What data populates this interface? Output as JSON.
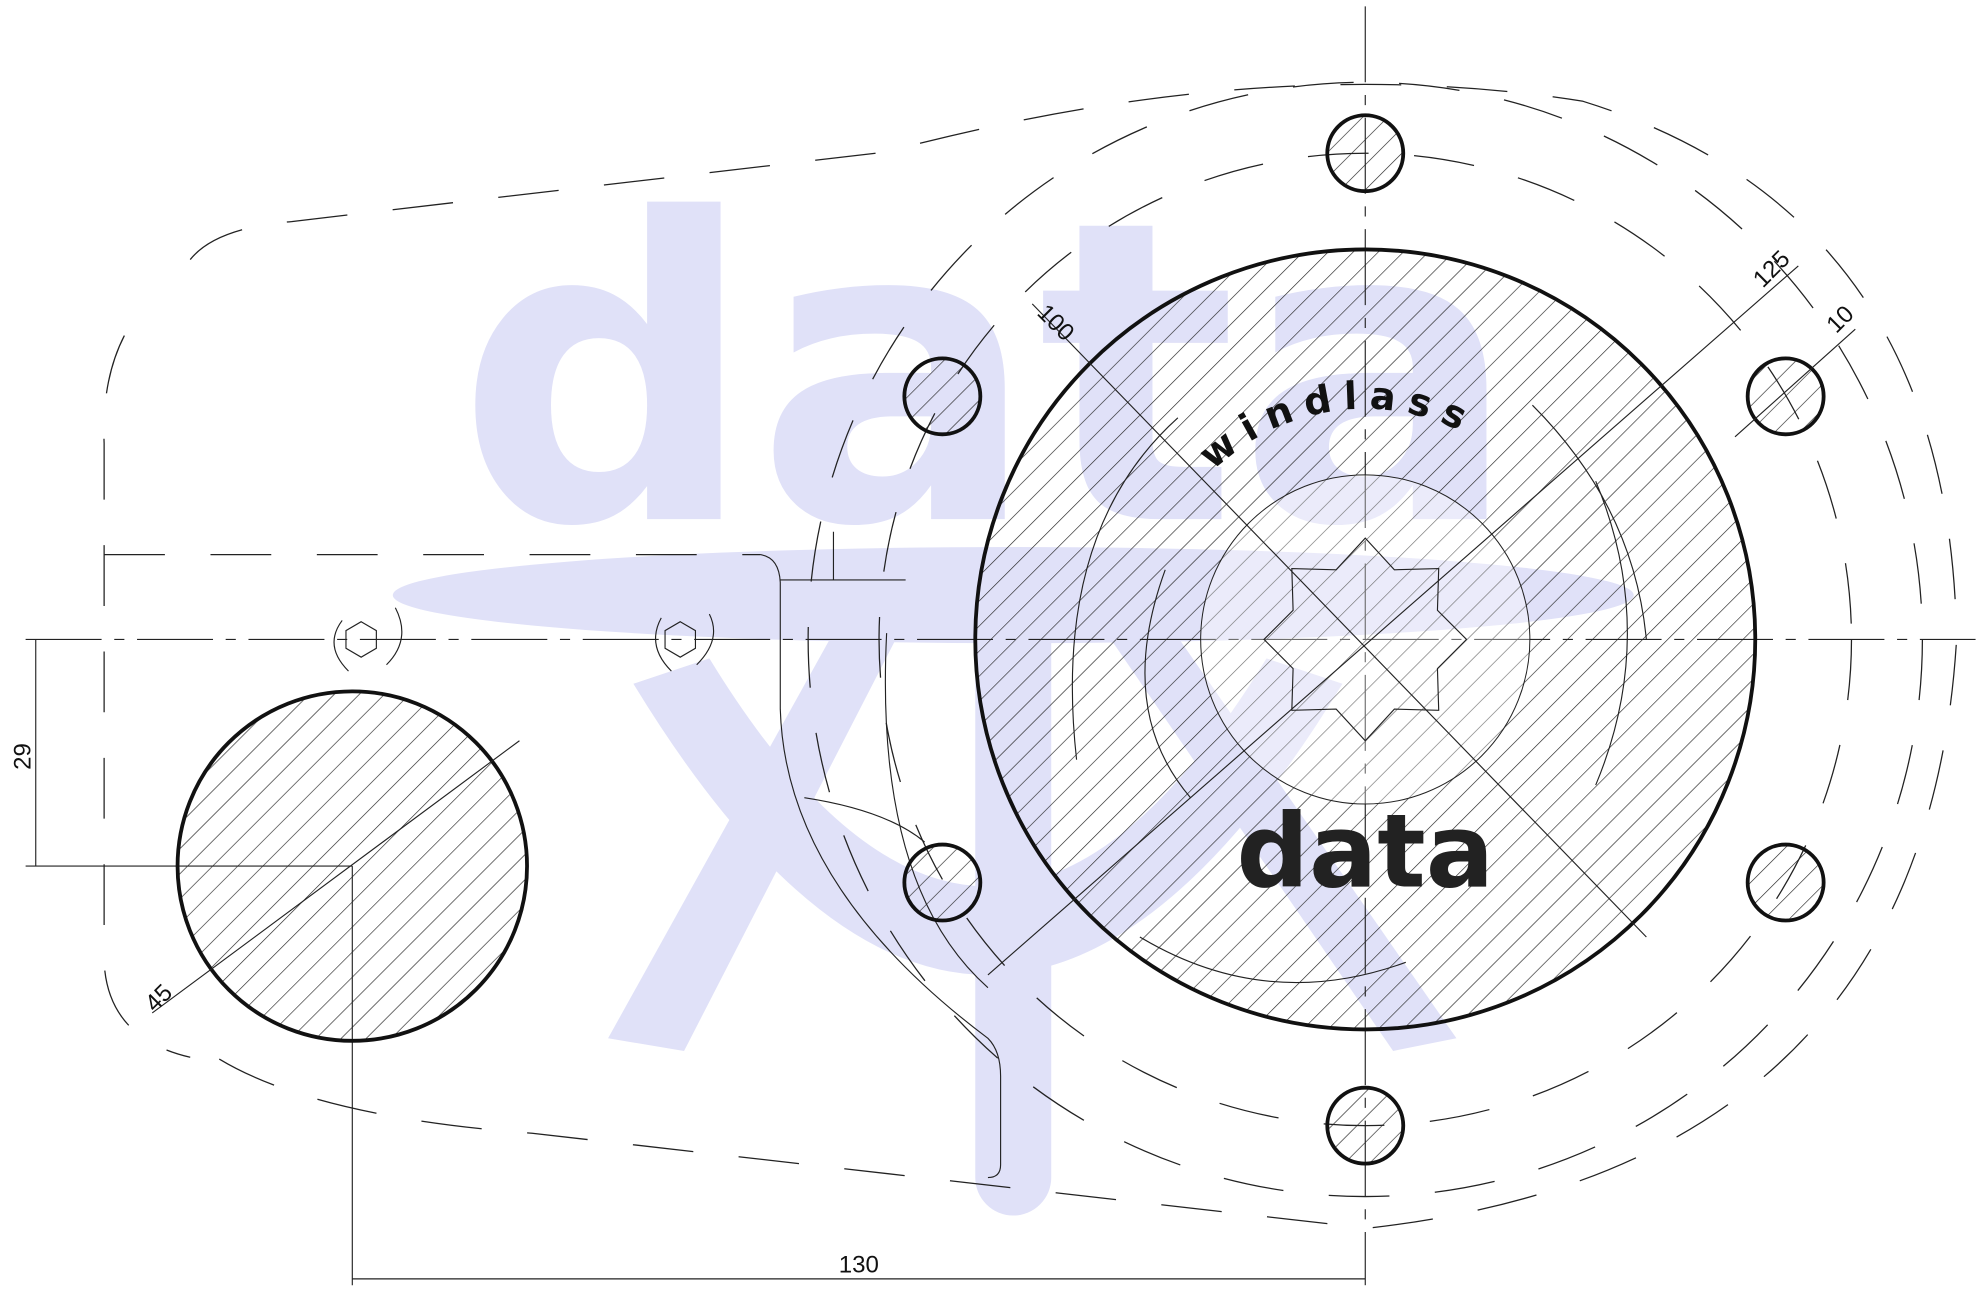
{
  "labels": {
    "product": "windlass",
    "brand": "data",
    "watermark": "data"
  },
  "dimensions": [
    "100",
    "125",
    "10",
    "29",
    "45",
    "130"
  ]
}
